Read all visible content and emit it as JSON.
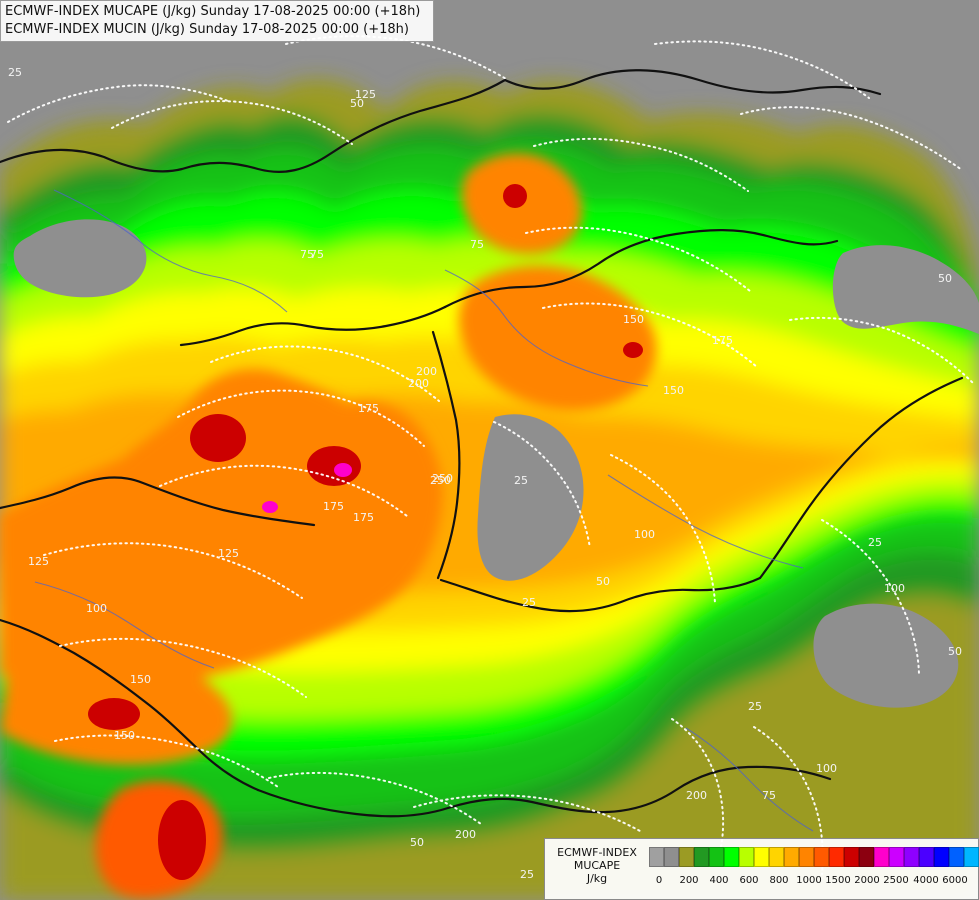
{
  "header": {
    "line1": "ECMWF-INDEX MUCAPE (J/kg) Sunday 17-08-2025 00:00 (+18h)",
    "line2": "ECMWF-INDEX MUCIN (J/kg) Sunday 17-08-2025 00:00 (+18h)"
  },
  "legend": {
    "title_line1": "ECMWF-INDEX",
    "title_line2": "MUCAPE",
    "title_line3": "J/kg",
    "colors": [
      "#a0a0a0",
      "#8f8f8f",
      "#9b9b24",
      "#229922",
      "#14c214",
      "#00ff00",
      "#b8ff00",
      "#ffff00",
      "#ffd400",
      "#ffaa00",
      "#ff8400",
      "#ff5a00",
      "#ff2a00",
      "#cc0000",
      "#8c0010",
      "#ff00cc",
      "#cc00ff",
      "#8f00ff",
      "#4b00ff",
      "#0000ff",
      "#0061ff",
      "#00b6ff",
      "#00ffff",
      "#ffffff"
    ],
    "tick_labels": [
      "0",
      "200",
      "400",
      "600",
      "800",
      "1000",
      "1500",
      "2000",
      "2500",
      "4000",
      "6000"
    ]
  },
  "contours": {
    "labels": [
      "25",
      "75",
      "125",
      "50",
      "100",
      "150",
      "175",
      "200",
      "250",
      "25",
      "75",
      "125",
      "150",
      "175",
      "100",
      "50",
      "25",
      "175",
      "200",
      "150",
      "125",
      "25",
      "50",
      "75",
      "100",
      "150",
      "50",
      "25",
      "75",
      "100",
      "175",
      "250",
      "200",
      "200",
      "50",
      "25"
    ]
  }
}
